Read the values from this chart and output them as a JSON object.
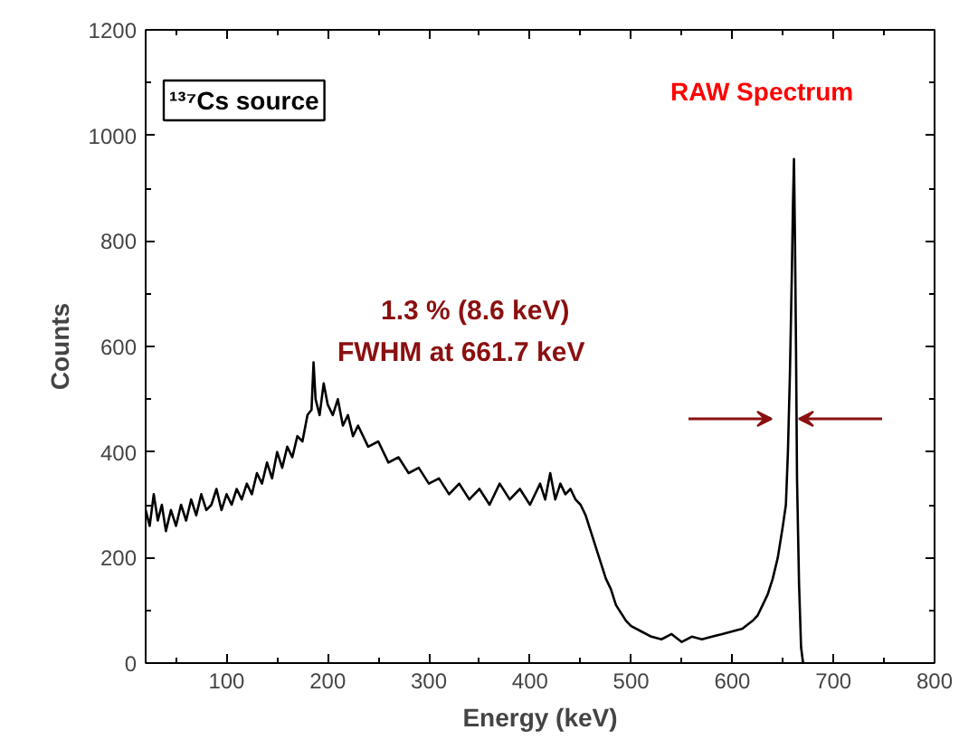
{
  "chart_data": {
    "type": "line",
    "xlabel": "Energy (keV)",
    "ylabel": "Counts",
    "xlim": [
      20,
      800
    ],
    "ylim": [
      0,
      1200
    ],
    "xticks": [
      100,
      200,
      300,
      400,
      500,
      600,
      700,
      800
    ],
    "yticks": [
      0,
      200,
      400,
      600,
      800,
      1000,
      1200
    ],
    "grid": false,
    "marker": "none",
    "line_style": "solid",
    "annotations": [
      "¹³⁷Cs source",
      "RAW Spectrum",
      "1.3 % (8.6 keV)",
      "FWHM at 661.7 keV"
    ],
    "series": [
      {
        "color": "#000000",
        "x": [
          20,
          24,
          28,
          32,
          36,
          40,
          45,
          50,
          55,
          60,
          65,
          70,
          75,
          80,
          85,
          90,
          95,
          100,
          105,
          110,
          115,
          120,
          125,
          130,
          135,
          140,
          145,
          150,
          155,
          160,
          165,
          170,
          175,
          180,
          184,
          186,
          188,
          192,
          196,
          200,
          205,
          210,
          215,
          220,
          225,
          230,
          240,
          250,
          260,
          270,
          280,
          290,
          300,
          310,
          320,
          330,
          340,
          350,
          360,
          370,
          380,
          390,
          400,
          410,
          415,
          420,
          425,
          430,
          435,
          440,
          445,
          450,
          455,
          460,
          465,
          470,
          475,
          480,
          485,
          490,
          495,
          500,
          510,
          520,
          530,
          540,
          550,
          560,
          570,
          580,
          590,
          600,
          610,
          620,
          625,
          630,
          635,
          640,
          645,
          650,
          653,
          655,
          657,
          659,
          660,
          661,
          662,
          663,
          664,
          666,
          668,
          670
        ],
        "values": [
          290,
          260,
          320,
          270,
          300,
          250,
          290,
          260,
          300,
          270,
          310,
          280,
          320,
          290,
          300,
          330,
          290,
          320,
          300,
          330,
          310,
          340,
          320,
          360,
          340,
          380,
          350,
          400,
          370,
          410,
          390,
          430,
          420,
          470,
          480,
          570,
          500,
          470,
          530,
          490,
          470,
          500,
          450,
          470,
          430,
          450,
          410,
          420,
          380,
          390,
          360,
          370,
          340,
          350,
          320,
          340,
          310,
          330,
          300,
          340,
          310,
          330,
          300,
          340,
          310,
          360,
          310,
          340,
          320,
          330,
          310,
          300,
          280,
          250,
          220,
          190,
          160,
          140,
          110,
          95,
          80,
          70,
          60,
          50,
          45,
          55,
          40,
          50,
          45,
          50,
          55,
          60,
          65,
          80,
          90,
          110,
          130,
          160,
          200,
          260,
          300,
          400,
          550,
          750,
          870,
          955,
          800,
          600,
          350,
          150,
          30,
          0
        ]
      }
    ]
  }
}
